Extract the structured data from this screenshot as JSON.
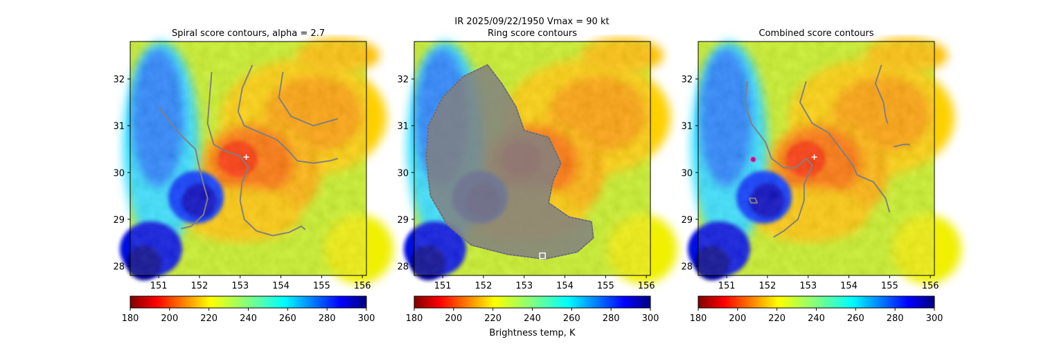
{
  "figure": {
    "suptitle_line1": "IR  2025/09/22/1950    Vmax = 90 kt",
    "colorbar_label": "Brightness temp, K",
    "colormap": "jet_r",
    "colors": {
      "contour": "#808080",
      "center_marker": "#ffffff",
      "combined_marker": "#9a1f8f"
    }
  },
  "chart_data": [
    {
      "type": "heatmap",
      "title": "Spiral score contours, alpha =  2.7",
      "xlim": [
        150.3,
        156.1
      ],
      "ylim": [
        27.8,
        32.8
      ],
      "xticks": [
        151,
        152,
        153,
        154,
        155,
        156
      ],
      "yticks": [
        28,
        29,
        30,
        31,
        32
      ],
      "marker": {
        "shape": "plus",
        "lon": 153.15,
        "lat": 30.33
      },
      "contours": [
        [
          [
            152.3,
            32.15
          ],
          [
            152.25,
            31.6
          ],
          [
            152.2,
            31.05
          ],
          [
            152.35,
            30.6
          ],
          [
            152.65,
            30.45
          ],
          [
            153.0,
            30.35
          ],
          [
            153.2,
            30.1
          ],
          [
            153.05,
            29.8
          ],
          [
            153.0,
            29.4
          ],
          [
            153.1,
            29.0
          ],
          [
            153.4,
            28.75
          ],
          [
            153.8,
            28.65
          ],
          [
            154.2,
            28.72
          ],
          [
            154.5,
            28.85
          ],
          [
            154.6,
            28.78
          ]
        ],
        [
          [
            151.0,
            31.4
          ],
          [
            151.3,
            31.05
          ],
          [
            151.6,
            30.75
          ],
          [
            151.9,
            30.5
          ],
          [
            152.0,
            30.1
          ],
          [
            152.1,
            29.75
          ],
          [
            152.2,
            29.45
          ],
          [
            152.1,
            29.1
          ],
          [
            151.8,
            28.85
          ],
          [
            151.55,
            28.8
          ]
        ],
        [
          [
            153.3,
            32.3
          ],
          [
            153.05,
            31.8
          ],
          [
            152.95,
            31.3
          ],
          [
            153.1,
            31.0
          ],
          [
            153.5,
            30.85
          ],
          [
            153.9,
            30.7
          ],
          [
            154.2,
            30.45
          ],
          [
            154.4,
            30.25
          ],
          [
            154.8,
            30.2
          ],
          [
            155.2,
            30.25
          ],
          [
            155.4,
            30.3
          ]
        ],
        [
          [
            154.05,
            32.15
          ],
          [
            153.95,
            31.6
          ],
          [
            154.25,
            31.2
          ],
          [
            154.8,
            31.0
          ],
          [
            155.4,
            31.15
          ]
        ]
      ]
    },
    {
      "type": "heatmap",
      "title": "Ring score contours",
      "xlim": [
        150.3,
        156.1
      ],
      "ylim": [
        27.8,
        32.8
      ],
      "xticks": [
        151,
        152,
        153,
        154,
        155,
        156
      ],
      "yticks": [
        28,
        29,
        30,
        31,
        32
      ],
      "marker": {
        "shape": "square",
        "lon": 153.45,
        "lat": 28.22
      },
      "ring_region": [
        [
          152.1,
          32.3
        ],
        [
          151.5,
          32.05
        ],
        [
          151.0,
          31.6
        ],
        [
          150.65,
          31.0
        ],
        [
          150.6,
          30.3
        ],
        [
          150.7,
          29.5
        ],
        [
          151.1,
          28.9
        ],
        [
          151.7,
          28.45
        ],
        [
          152.6,
          28.25
        ],
        [
          153.5,
          28.15
        ],
        [
          154.3,
          28.3
        ],
        [
          154.7,
          28.6
        ],
        [
          154.65,
          28.95
        ],
        [
          154.1,
          29.05
        ],
        [
          153.6,
          29.35
        ],
        [
          153.7,
          29.8
        ],
        [
          153.9,
          30.2
        ],
        [
          153.6,
          30.75
        ],
        [
          153.0,
          30.9
        ],
        [
          152.8,
          31.4
        ],
        [
          152.45,
          31.9
        ]
      ]
    },
    {
      "type": "heatmap",
      "title": "Combined score contours",
      "xlim": [
        150.3,
        156.1
      ],
      "ylim": [
        27.8,
        32.8
      ],
      "xticks": [
        151,
        152,
        153,
        154,
        155,
        156
      ],
      "yticks": [
        28,
        29,
        30,
        31,
        32
      ],
      "marker": {
        "shape": "plus",
        "lon": 153.15,
        "lat": 30.33
      },
      "marker2": {
        "shape": "circle",
        "lon": 151.65,
        "lat": 30.28
      },
      "contours": [
        [
          [
            151.5,
            31.95
          ],
          [
            151.45,
            31.5
          ],
          [
            151.6,
            31.05
          ],
          [
            151.95,
            30.65
          ],
          [
            152.1,
            30.3
          ],
          [
            152.4,
            30.1
          ],
          [
            152.7,
            30.1
          ],
          [
            152.95,
            30.3
          ],
          [
            153.1,
            30.15
          ],
          [
            152.9,
            29.75
          ],
          [
            152.9,
            29.4
          ],
          [
            152.75,
            29.0
          ],
          [
            152.4,
            28.75
          ],
          [
            152.15,
            28.62
          ]
        ],
        [
          [
            151.55,
            29.45
          ],
          [
            151.7,
            29.45
          ],
          [
            151.75,
            29.35
          ],
          [
            151.6,
            29.35
          ],
          [
            151.55,
            29.45
          ]
        ],
        [
          [
            152.95,
            31.95
          ],
          [
            152.8,
            31.5
          ],
          [
            153.1,
            31.05
          ],
          [
            153.5,
            30.85
          ],
          [
            153.8,
            30.5
          ],
          [
            154.1,
            30.15
          ],
          [
            154.2,
            29.95
          ],
          [
            154.6,
            29.8
          ],
          [
            154.9,
            29.45
          ],
          [
            155.0,
            29.15
          ]
        ],
        [
          [
            154.8,
            32.3
          ],
          [
            154.65,
            31.9
          ],
          [
            154.85,
            31.5
          ],
          [
            154.9,
            31.2
          ],
          [
            154.95,
            31.05
          ]
        ],
        [
          [
            155.1,
            30.55
          ],
          [
            155.35,
            30.6
          ],
          [
            155.5,
            30.6
          ]
        ]
      ]
    }
  ],
  "colorbar": {
    "vmin": 180,
    "vmax": 300,
    "ticks": [
      180,
      200,
      220,
      240,
      260,
      280,
      300
    ]
  }
}
